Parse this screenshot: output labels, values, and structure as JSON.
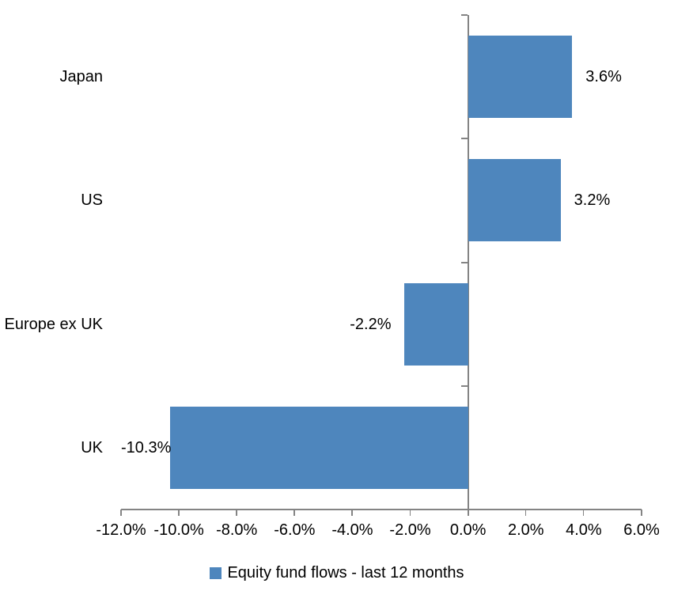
{
  "chart_data": {
    "type": "bar",
    "orientation": "horizontal",
    "title": "",
    "categories": [
      "Japan",
      "US",
      "Europe ex UK",
      "UK"
    ],
    "series": [
      {
        "name": "Equity fund flows - last 12 months",
        "values": [
          3.6,
          3.2,
          -2.2,
          -10.3
        ]
      }
    ],
    "data_labels": [
      "3.6%",
      "3.2%",
      "-2.2%",
      "-10.3%"
    ],
    "x_tick_labels": [
      "-12.0%",
      "-10.0%",
      "-8.0%",
      "-6.0%",
      "-4.0%",
      "-2.0%",
      "0.0%",
      "2.0%",
      "4.0%",
      "6.0%"
    ],
    "x_tick_values": [
      -12,
      -10,
      -8,
      -6,
      -4,
      -2,
      0,
      2,
      4,
      6
    ],
    "xlim": [
      -12,
      6
    ],
    "grid": false,
    "legend": "Equity fund flows - last 12 months",
    "legend_position": "bottom",
    "bar_color": "#4E86BD",
    "axis_color": "#848484",
    "text_color": "#000000"
  }
}
